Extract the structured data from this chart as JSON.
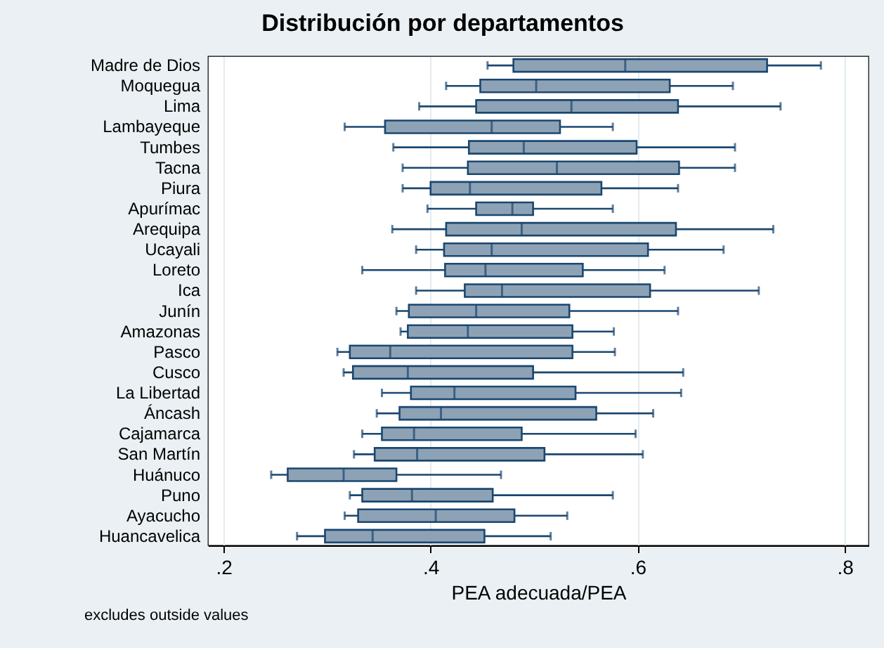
{
  "chart_data": {
    "type": "box",
    "title": "Distribución por departamentos",
    "xlabel": "PEA adecuada/PEA",
    "orientation": "horizontal",
    "categories": [
      "Madre de Dios",
      "Moquegua",
      "Lima",
      "Lambayeque",
      "Tumbes",
      "Tacna",
      "Piura",
      "Apurímac",
      "Arequipa",
      "Ucayali",
      "Loreto",
      "Ica",
      "Junín",
      "Amazonas",
      "Pasco",
      "Cusco",
      "La Libertad",
      "Áncash",
      "Cajamarca",
      "San Martín",
      "Huánuco",
      "Puno",
      "Ayacucho",
      "Huancavelica"
    ],
    "series": [
      {
        "color": "#8ea2b6",
        "boxes": [
          {
            "low": 0.455,
            "q1": 0.48,
            "median": 0.588,
            "q3": 0.725,
            "high": 0.777
          },
          {
            "low": 0.415,
            "q1": 0.448,
            "median": 0.502,
            "q3": 0.631,
            "high": 0.692
          },
          {
            "low": 0.389,
            "q1": 0.444,
            "median": 0.536,
            "q3": 0.639,
            "high": 0.738
          },
          {
            "low": 0.317,
            "q1": 0.356,
            "median": 0.459,
            "q3": 0.525,
            "high": 0.576
          },
          {
            "low": 0.364,
            "q1": 0.437,
            "median": 0.49,
            "q3": 0.599,
            "high": 0.694
          },
          {
            "low": 0.373,
            "q1": 0.436,
            "median": 0.522,
            "q3": 0.64,
            "high": 0.694
          },
          {
            "low": 0.373,
            "q1": 0.4,
            "median": 0.438,
            "q3": 0.565,
            "high": 0.639
          },
          {
            "low": 0.397,
            "q1": 0.444,
            "median": 0.479,
            "q3": 0.499,
            "high": 0.576
          },
          {
            "low": 0.363,
            "q1": 0.415,
            "median": 0.488,
            "q3": 0.637,
            "high": 0.731
          },
          {
            "low": 0.386,
            "q1": 0.413,
            "median": 0.459,
            "q3": 0.61,
            "high": 0.683
          },
          {
            "low": 0.334,
            "q1": 0.414,
            "median": 0.453,
            "q3": 0.547,
            "high": 0.626
          },
          {
            "low": 0.386,
            "q1": 0.433,
            "median": 0.469,
            "q3": 0.612,
            "high": 0.717
          },
          {
            "low": 0.367,
            "q1": 0.379,
            "median": 0.444,
            "q3": 0.534,
            "high": 0.639
          },
          {
            "low": 0.371,
            "q1": 0.378,
            "median": 0.436,
            "q3": 0.537,
            "high": 0.577
          },
          {
            "low": 0.31,
            "q1": 0.322,
            "median": 0.361,
            "q3": 0.537,
            "high": 0.578
          },
          {
            "low": 0.316,
            "q1": 0.325,
            "median": 0.378,
            "q3": 0.499,
            "high": 0.644
          },
          {
            "low": 0.353,
            "q1": 0.381,
            "median": 0.423,
            "q3": 0.54,
            "high": 0.642
          },
          {
            "low": 0.348,
            "q1": 0.37,
            "median": 0.41,
            "q3": 0.56,
            "high": 0.615
          },
          {
            "low": 0.334,
            "q1": 0.353,
            "median": 0.384,
            "q3": 0.488,
            "high": 0.598
          },
          {
            "low": 0.326,
            "q1": 0.346,
            "median": 0.387,
            "q3": 0.51,
            "high": 0.605
          },
          {
            "low": 0.246,
            "q1": 0.262,
            "median": 0.316,
            "q3": 0.367,
            "high": 0.468
          },
          {
            "low": 0.322,
            "q1": 0.334,
            "median": 0.382,
            "q3": 0.46,
            "high": 0.576
          },
          {
            "low": 0.317,
            "q1": 0.33,
            "median": 0.405,
            "q3": 0.481,
            "high": 0.532
          },
          {
            "low": 0.271,
            "q1": 0.298,
            "median": 0.344,
            "q3": 0.452,
            "high": 0.516
          }
        ]
      }
    ],
    "xlim": [
      0.185,
      0.823
    ],
    "xticks": [
      {
        "value": 0.2,
        "label": ".2"
      },
      {
        "value": 0.4,
        "label": ".4"
      },
      {
        "value": 0.6,
        "label": ".6"
      },
      {
        "value": 0.8,
        "label": ".8"
      }
    ],
    "grid": "x",
    "annotations": [
      "excludes outside values"
    ]
  }
}
